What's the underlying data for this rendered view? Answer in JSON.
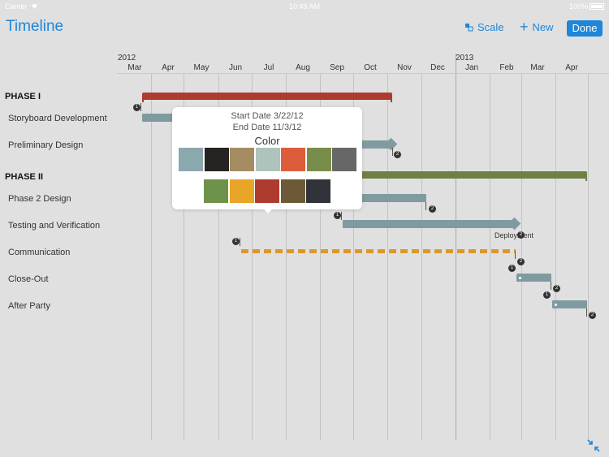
{
  "status_bar": {
    "carrier": "Carrier",
    "time": "10:49 AM",
    "battery": "100%"
  },
  "header": {
    "title": "Timeline",
    "scale_label": "Scale",
    "new_label": "New",
    "done_label": "Done"
  },
  "timeline": {
    "year_2012": "2012",
    "year_2013": "2013",
    "months": [
      "Mar",
      "Apr",
      "May",
      "Jun",
      "Jul",
      "Aug",
      "Sep",
      "Oct",
      "Nov",
      "Dec",
      "Jan",
      "Feb",
      "Mar",
      "Apr"
    ]
  },
  "rows": {
    "phase1": "PHASE I",
    "storyboard": "Storyboard Development",
    "preliminary": "Preliminary Design",
    "phase2": "PHASE II",
    "phase2_design": "Phase 2 Design",
    "testing": "Testing and Verification",
    "communication": "Communication",
    "closeout": "Close-Out",
    "afterparty": "After Party"
  },
  "milestone_label": "Deployment",
  "marker_labels": {
    "start": "1",
    "end": "2"
  },
  "popover": {
    "start_date": "Start Date 3/22/12",
    "end_date": "End Date 11/3/12",
    "color_label": "Color",
    "swatches_row1": [
      "#8ba8ae",
      "#262323",
      "#a58c63",
      "#aec3bb",
      "#dd5c3b",
      "#7a8c49",
      "#676767"
    ],
    "swatches_row2": [
      "#6e9249",
      "#e9a527",
      "#ad3b2e",
      "#6c5937",
      "#30343a"
    ]
  },
  "colors": {
    "accent": "#1f86d8",
    "phase1_bar": "#ad3b2e",
    "phase2_bar": "#6e8043",
    "task_bar": "#7f9b9f",
    "comm_bar": "#d99a2b"
  },
  "icons": {
    "scale": "scale-icon",
    "new": "plus-icon",
    "collapse": "collapse-arrows-icon",
    "wifi": "wifi-icon"
  }
}
